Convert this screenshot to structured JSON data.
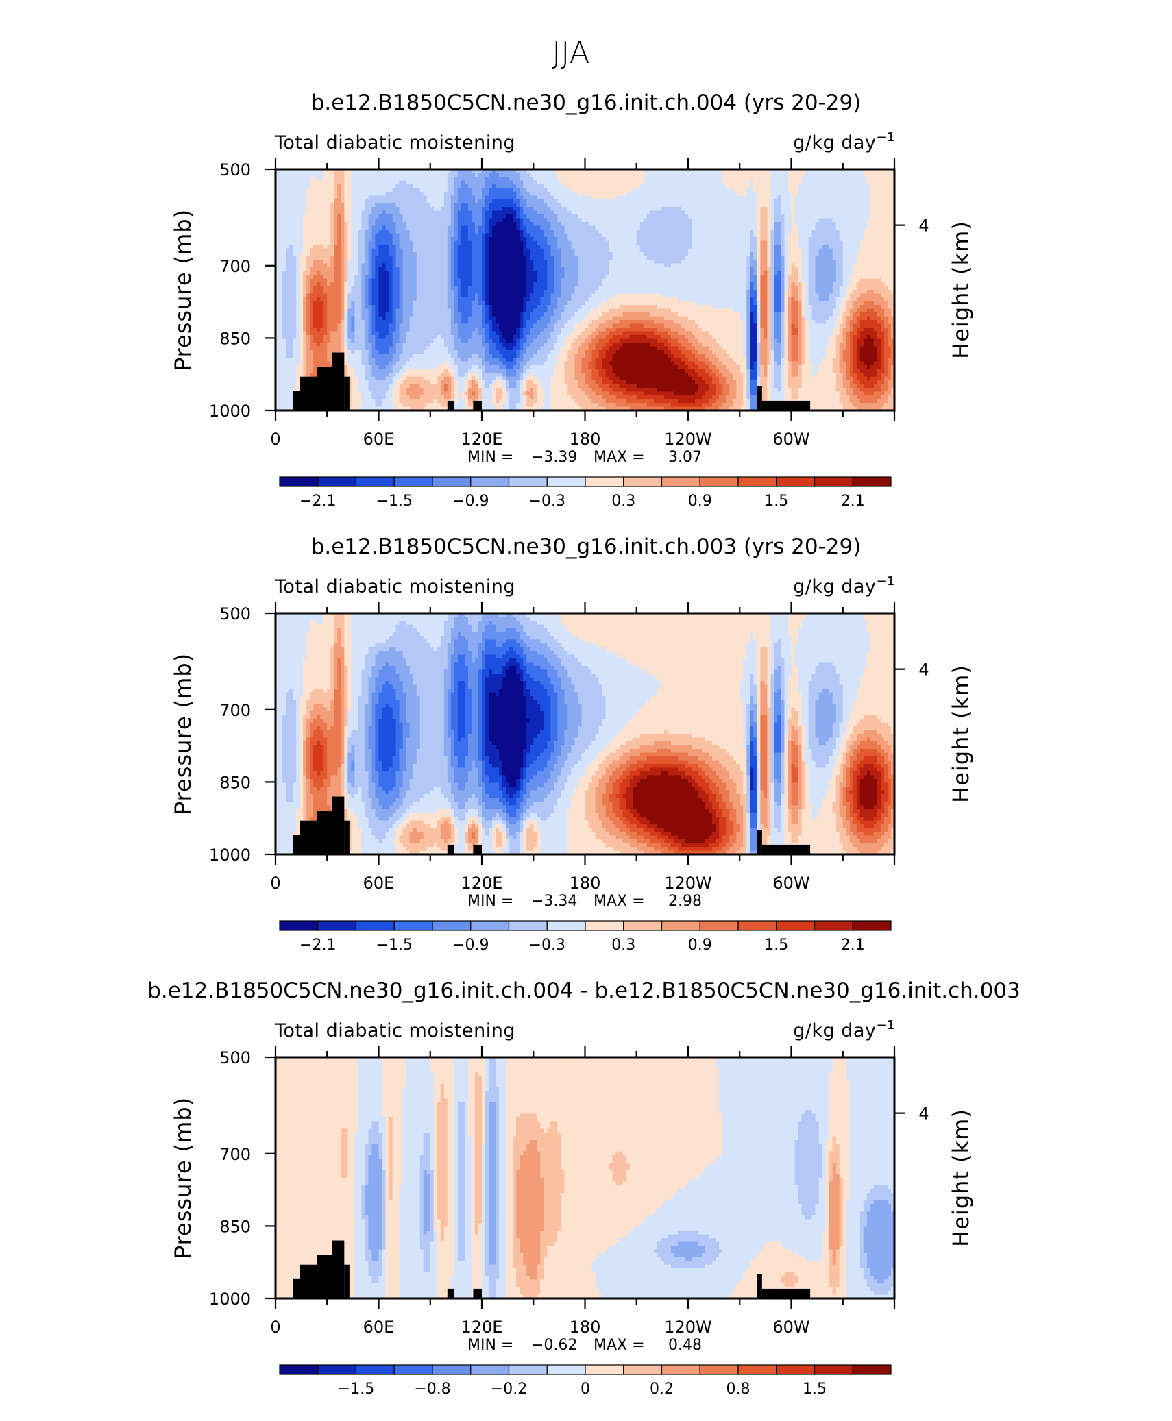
{
  "figure_title": "JJA",
  "chart_data": [
    {
      "type": "heatmap",
      "title": "b.e12.B1850C5CN.ne30_g16.init.ch.004 (yrs 20-29)",
      "left_label": "Total diabatic moistening",
      "units": "g/kg day",
      "units_exp": "−1",
      "ylabel": "Pressure  (mb)",
      "y2label": "Height  (km)",
      "x_ticks": [
        "0",
        "60E",
        "120E",
        "180",
        "120W",
        "60W"
      ],
      "x_tick_values": [
        0,
        60,
        120,
        180,
        240,
        300
      ],
      "x_range": [
        0,
        360
      ],
      "y_ticks": [
        "500",
        "700",
        "850",
        "1000"
      ],
      "y_tick_values": [
        500,
        700,
        850,
        1000
      ],
      "y_range": [
        1000,
        500
      ],
      "y2_ticks": [
        "4"
      ],
      "min_label": "MIN =",
      "min": "−3.39",
      "max_label": "MAX =",
      "max": "3.07",
      "colorbar_labels": [
        "−2.1",
        "−1.5",
        "−0.9",
        "−0.3",
        "0.3",
        "0.9",
        "1.5",
        "2.1"
      ],
      "colorbar_levels": [
        -2.4,
        -2.1,
        -1.8,
        -1.5,
        -1.2,
        -0.9,
        -0.6,
        -0.3,
        0,
        0.3,
        0.6,
        0.9,
        1.2,
        1.5,
        1.8,
        2.1,
        2.4
      ],
      "terrain": [
        [
          10,
          960
        ],
        [
          14,
          930
        ],
        [
          24,
          910
        ],
        [
          33,
          880
        ],
        [
          40,
          930
        ],
        [
          43,
          1000
        ],
        [
          100,
          980
        ],
        [
          104,
          1000
        ],
        [
          115,
          980
        ],
        [
          120,
          1000
        ],
        [
          280,
          950
        ],
        [
          283,
          980
        ],
        [
          295,
          980
        ],
        [
          308,
          980
        ],
        [
          311,
          1000
        ]
      ],
      "features": [
        {
          "lon": 25,
          "p": 800,
          "amp": 1.7,
          "wlon": 9,
          "wp": 110
        },
        {
          "lon": 30,
          "p": 960,
          "amp": 1.6,
          "wlon": 12,
          "wp": 50
        },
        {
          "lon": 37,
          "p": 680,
          "amp": 1.1,
          "wlon": 4,
          "wp": 200
        },
        {
          "lon": 44,
          "p": 820,
          "amp": -0.9,
          "wlon": 3,
          "wp": 60
        },
        {
          "lon": 9,
          "p": 780,
          "amp": -0.6,
          "wlon": 6,
          "wp": 150
        },
        {
          "lon": 62,
          "p": 760,
          "amp": -1.6,
          "wlon": 10,
          "wp": 180
        },
        {
          "lon": 78,
          "p": 720,
          "amp": -0.6,
          "wlon": 25,
          "wp": 220
        },
        {
          "lon": 80,
          "p": 960,
          "amp": 0.9,
          "wlon": 14,
          "wp": 45
        },
        {
          "lon": 100,
          "p": 950,
          "amp": 1.0,
          "wlon": 5,
          "wp": 40
        },
        {
          "lon": 115,
          "p": 960,
          "amp": 1.2,
          "wlon": 5,
          "wp": 40
        },
        {
          "lon": 130,
          "p": 960,
          "amp": 1.1,
          "wlon": 5,
          "wp": 40
        },
        {
          "lon": 148,
          "p": 960,
          "amp": 0.9,
          "wlon": 5,
          "wp": 40
        },
        {
          "lon": 110,
          "p": 690,
          "amp": -1.6,
          "wlon": 8,
          "wp": 210
        },
        {
          "lon": 125,
          "p": 700,
          "amp": -1.8,
          "wlon": 7,
          "wp": 220
        },
        {
          "lon": 136,
          "p": 730,
          "amp": -2.7,
          "wlon": 8,
          "wp": 190
        },
        {
          "lon": 150,
          "p": 720,
          "amp": -1.4,
          "wlon": 14,
          "wp": 170
        },
        {
          "lon": 170,
          "p": 720,
          "amp": -0.6,
          "wlon": 25,
          "wp": 150
        },
        {
          "lon": 210,
          "p": 900,
          "amp": 2.7,
          "wlon": 32,
          "wp": 90
        },
        {
          "lon": 245,
          "p": 960,
          "amp": 1.6,
          "wlon": 22,
          "wp": 60
        },
        {
          "lon": 278,
          "p": 860,
          "amp": -2.4,
          "wlon": 3,
          "wp": 170
        },
        {
          "lon": 284,
          "p": 780,
          "amp": 1.2,
          "wlon": 4,
          "wp": 180
        },
        {
          "lon": 292,
          "p": 760,
          "amp": -1.4,
          "wlon": 4,
          "wp": 170
        },
        {
          "lon": 302,
          "p": 830,
          "amp": 1.3,
          "wlon": 5,
          "wp": 120
        },
        {
          "lon": 320,
          "p": 720,
          "amp": -0.8,
          "wlon": 12,
          "wp": 120
        },
        {
          "lon": 345,
          "p": 880,
          "amp": 2.3,
          "wlon": 15,
          "wp": 110
        },
        {
          "lon": 228,
          "p": 600,
          "amp": -0.4,
          "wlon": 30,
          "wp": 200
        },
        {
          "lon": 200,
          "p": 520,
          "amp": 0.3,
          "wlon": 60,
          "wp": 60
        },
        {
          "lon": 62,
          "p": 540,
          "amp": 0.4,
          "wlon": 8,
          "wp": 30
        }
      ]
    },
    {
      "type": "heatmap",
      "title": "b.e12.B1850C5CN.ne30_g16.init.ch.003 (yrs 20-29)",
      "left_label": "Total diabatic moistening",
      "units": "g/kg day",
      "units_exp": "−1",
      "ylabel": "Pressure  (mb)",
      "y2label": "Height  (km)",
      "x_ticks": [
        "0",
        "60E",
        "120E",
        "180",
        "120W",
        "60W"
      ],
      "x_tick_values": [
        0,
        60,
        120,
        180,
        240,
        300
      ],
      "x_range": [
        0,
        360
      ],
      "y_ticks": [
        "500",
        "700",
        "850",
        "1000"
      ],
      "y_tick_values": [
        500,
        700,
        850,
        1000
      ],
      "y_range": [
        1000,
        500
      ],
      "y2_ticks": [
        "4"
      ],
      "min_label": "MIN =",
      "min": "−3.34",
      "max_label": "MAX =",
      "max": "2.98",
      "colorbar_labels": [
        "−2.1",
        "−1.5",
        "−0.9",
        "−0.3",
        "0.3",
        "0.9",
        "1.5",
        "2.1"
      ],
      "colorbar_levels": [
        -2.4,
        -2.1,
        -1.8,
        -1.5,
        -1.2,
        -0.9,
        -0.6,
        -0.3,
        0,
        0.3,
        0.6,
        0.9,
        1.2,
        1.5,
        1.8,
        2.1,
        2.4
      ],
      "terrain": [
        [
          10,
          960
        ],
        [
          14,
          930
        ],
        [
          24,
          910
        ],
        [
          33,
          880
        ],
        [
          40,
          930
        ],
        [
          43,
          1000
        ],
        [
          100,
          980
        ],
        [
          104,
          1000
        ],
        [
          115,
          980
        ],
        [
          120,
          1000
        ],
        [
          280,
          950
        ],
        [
          283,
          980
        ],
        [
          295,
          980
        ],
        [
          308,
          980
        ],
        [
          311,
          1000
        ]
      ],
      "features": [
        {
          "lon": 25,
          "p": 800,
          "amp": 1.7,
          "wlon": 9,
          "wp": 110
        },
        {
          "lon": 30,
          "p": 960,
          "amp": 1.6,
          "wlon": 12,
          "wp": 50
        },
        {
          "lon": 37,
          "p": 680,
          "amp": 1.1,
          "wlon": 4,
          "wp": 200
        },
        {
          "lon": 44,
          "p": 820,
          "amp": -0.9,
          "wlon": 3,
          "wp": 60
        },
        {
          "lon": 9,
          "p": 780,
          "amp": -0.6,
          "wlon": 6,
          "wp": 150
        },
        {
          "lon": 64,
          "p": 770,
          "amp": -1.3,
          "wlon": 11,
          "wp": 180
        },
        {
          "lon": 78,
          "p": 720,
          "amp": -0.6,
          "wlon": 25,
          "wp": 220
        },
        {
          "lon": 80,
          "p": 960,
          "amp": 0.9,
          "wlon": 14,
          "wp": 45
        },
        {
          "lon": 100,
          "p": 950,
          "amp": 1.0,
          "wlon": 5,
          "wp": 40
        },
        {
          "lon": 115,
          "p": 960,
          "amp": 1.2,
          "wlon": 5,
          "wp": 40
        },
        {
          "lon": 130,
          "p": 960,
          "amp": 1.1,
          "wlon": 5,
          "wp": 40
        },
        {
          "lon": 148,
          "p": 960,
          "amp": 0.9,
          "wlon": 5,
          "wp": 40
        },
        {
          "lon": 108,
          "p": 700,
          "amp": -1.5,
          "wlon": 8,
          "wp": 210
        },
        {
          "lon": 124,
          "p": 710,
          "amp": -1.9,
          "wlon": 7,
          "wp": 220
        },
        {
          "lon": 137,
          "p": 740,
          "amp": -2.7,
          "wlon": 8,
          "wp": 190
        },
        {
          "lon": 152,
          "p": 720,
          "amp": -1.5,
          "wlon": 14,
          "wp": 170
        },
        {
          "lon": 172,
          "p": 720,
          "amp": -0.6,
          "wlon": 25,
          "wp": 150
        },
        {
          "lon": 225,
          "p": 880,
          "amp": 2.8,
          "wlon": 34,
          "wp": 90
        },
        {
          "lon": 248,
          "p": 960,
          "amp": 1.6,
          "wlon": 22,
          "wp": 60
        },
        {
          "lon": 278,
          "p": 860,
          "amp": -2.4,
          "wlon": 3,
          "wp": 170
        },
        {
          "lon": 284,
          "p": 780,
          "amp": 1.2,
          "wlon": 4,
          "wp": 180
        },
        {
          "lon": 292,
          "p": 760,
          "amp": -1.4,
          "wlon": 4,
          "wp": 170
        },
        {
          "lon": 302,
          "p": 830,
          "amp": 1.3,
          "wlon": 5,
          "wp": 120
        },
        {
          "lon": 320,
          "p": 720,
          "amp": -0.8,
          "wlon": 12,
          "wp": 120
        },
        {
          "lon": 345,
          "p": 870,
          "amp": 2.4,
          "wlon": 15,
          "wp": 110
        },
        {
          "lon": 200,
          "p": 520,
          "amp": 0.3,
          "wlon": 60,
          "wp": 60
        },
        {
          "lon": 62,
          "p": 540,
          "amp": 0.4,
          "wlon": 8,
          "wp": 30
        }
      ]
    },
    {
      "type": "heatmap",
      "title": "b.e12.B1850C5CN.ne30_g16.init.ch.004 - b.e12.B1850C5CN.ne30_g16.init.ch.003",
      "left_label": "Total diabatic moistening",
      "units": "g/kg day",
      "units_exp": "−1",
      "ylabel": "Pressure  (mb)",
      "y2label": "Height  (km)",
      "x_ticks": [
        "0",
        "60E",
        "120E",
        "180",
        "120W",
        "60W"
      ],
      "x_tick_values": [
        0,
        60,
        120,
        180,
        240,
        300
      ],
      "x_range": [
        0,
        360
      ],
      "y_ticks": [
        "500",
        "700",
        "850",
        "1000"
      ],
      "y_tick_values": [
        500,
        700,
        850,
        1000
      ],
      "y_range": [
        1000,
        500
      ],
      "y2_ticks": [
        "4"
      ],
      "min_label": "MIN =",
      "min": "−0.62",
      "max_label": "MAX =",
      "max": "0.48",
      "colorbar_labels": [
        "−1.5",
        "−0.8",
        "−0.2",
        "0",
        "0.2",
        "0.8",
        "1.5"
      ],
      "colorbar_levels": [
        -3.0,
        -2.0,
        -1.5,
        -1.0,
        -0.8,
        -0.5,
        -0.2,
        -0.1,
        0,
        0.1,
        0.2,
        0.5,
        0.8,
        1.0,
        1.5,
        2.0,
        3.0
      ],
      "terrain": [
        [
          10,
          960
        ],
        [
          14,
          930
        ],
        [
          24,
          910
        ],
        [
          33,
          880
        ],
        [
          40,
          930
        ],
        [
          43,
          1000
        ],
        [
          100,
          980
        ],
        [
          104,
          1000
        ],
        [
          115,
          980
        ],
        [
          120,
          1000
        ],
        [
          280,
          950
        ],
        [
          283,
          980
        ],
        [
          295,
          980
        ],
        [
          308,
          980
        ],
        [
          311,
          1000
        ]
      ],
      "features": [
        {
          "lon": 58,
          "p": 800,
          "amp": -0.42,
          "wlon": 6,
          "wp": 140
        },
        {
          "lon": 66,
          "p": 740,
          "amp": 0.18,
          "wlon": 3,
          "wp": 180
        },
        {
          "lon": 88,
          "p": 800,
          "amp": -0.25,
          "wlon": 4,
          "wp": 160
        },
        {
          "lon": 97,
          "p": 720,
          "amp": 0.2,
          "wlon": 4,
          "wp": 200
        },
        {
          "lon": 108,
          "p": 760,
          "amp": -0.22,
          "wlon": 3,
          "wp": 200
        },
        {
          "lon": 118,
          "p": 700,
          "amp": 0.18,
          "wlon": 3,
          "wp": 250
        },
        {
          "lon": 126,
          "p": 760,
          "amp": -0.35,
          "wlon": 4,
          "wp": 240
        },
        {
          "lon": 142,
          "p": 800,
          "amp": 0.22,
          "wlon": 5,
          "wp": 200
        },
        {
          "lon": 150,
          "p": 820,
          "amp": 0.42,
          "wlon": 5,
          "wp": 160
        },
        {
          "lon": 162,
          "p": 760,
          "amp": 0.15,
          "wlon": 8,
          "wp": 200
        },
        {
          "lon": 200,
          "p": 730,
          "amp": 0.12,
          "wlon": 12,
          "wp": 80
        },
        {
          "lon": 240,
          "p": 900,
          "amp": -0.25,
          "wlon": 20,
          "wp": 40
        },
        {
          "lon": 310,
          "p": 720,
          "amp": -0.18,
          "wlon": 10,
          "wp": 150
        },
        {
          "lon": 325,
          "p": 820,
          "amp": 0.35,
          "wlon": 4,
          "wp": 150
        },
        {
          "lon": 352,
          "p": 880,
          "amp": -0.5,
          "wlon": 10,
          "wp": 90
        },
        {
          "lon": 30,
          "p": 950,
          "amp": 0.15,
          "wlon": 8,
          "wp": 50
        },
        {
          "lon": 300,
          "p": 960,
          "amp": 0.12,
          "wlon": 15,
          "wp": 40
        },
        {
          "lon": 40,
          "p": 700,
          "amp": 0.12,
          "wlon": 4,
          "wp": 150
        }
      ]
    }
  ],
  "colormap": [
    "#0a0a8c",
    "#0f27b9",
    "#1c4fe0",
    "#3a6fee",
    "#6590ef",
    "#8aaaf2",
    "#b3c8f6",
    "#d6e4fb",
    "#fde3cf",
    "#f9c0a2",
    "#f39e78",
    "#ec7a50",
    "#e45a30",
    "#d53b19",
    "#b71f0e",
    "#8a0a05"
  ],
  "terrain_color": "#000000"
}
